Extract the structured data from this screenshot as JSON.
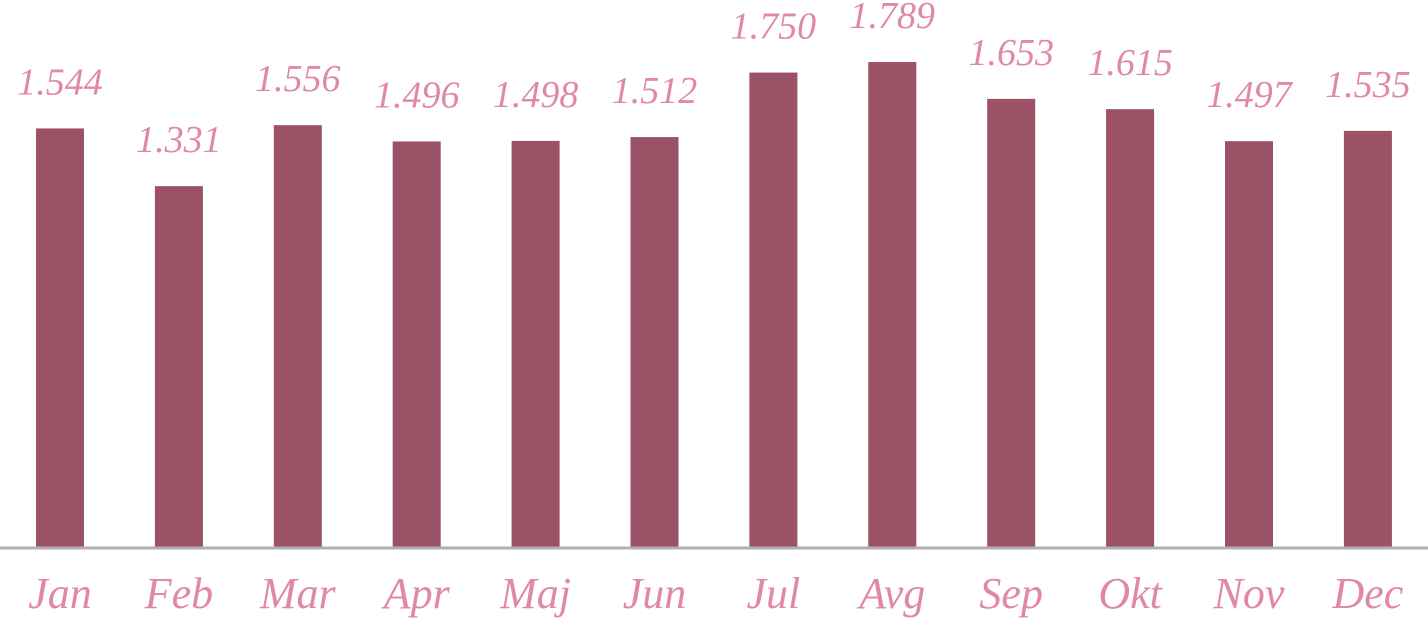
{
  "chart_data": {
    "type": "bar",
    "categories": [
      "Jan",
      "Feb",
      "Mar",
      "Apr",
      "Maj",
      "Jun",
      "Jul",
      "Avg",
      "Sep",
      "Okt",
      "Nov",
      "Dec"
    ],
    "values": [
      1544,
      1331,
      1556,
      1496,
      1498,
      1512,
      1750,
      1789,
      1653,
      1615,
      1497,
      1535
    ],
    "value_labels": [
      "1.544",
      "1.331",
      "1.556",
      "1.496",
      "1.498",
      "1.512",
      "1.750",
      "1.789",
      "1.653",
      "1.615",
      "1.497",
      "1.535"
    ],
    "color": "#9b5166",
    "label_color": "#e088aa"
  }
}
